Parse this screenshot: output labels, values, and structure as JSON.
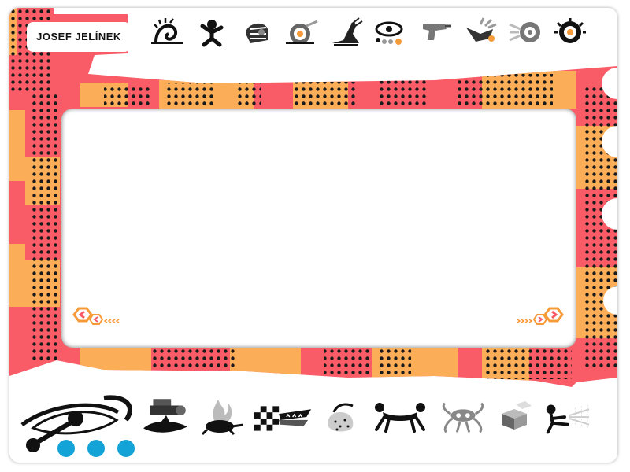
{
  "header": {
    "title": "JOSEF JELÍNEK"
  },
  "colors": {
    "coral": "#f95b67",
    "orange": "#fbae57",
    "dots": "#1a1a1a",
    "accent_blue": "#14a3d6",
    "arrow_orange": "#f79a3a"
  },
  "top_nav": {
    "items": [
      {
        "icon": "spiral-mollusk-icon"
      },
      {
        "icon": "dancing-figure-icon"
      },
      {
        "icon": "helmet-head-icon"
      },
      {
        "icon": "snail-shell-icon"
      },
      {
        "icon": "high-heel-shoe-icon"
      },
      {
        "icon": "eye-dots-icon"
      },
      {
        "icon": "pistol-icon"
      },
      {
        "icon": "bird-creature-icon"
      },
      {
        "icon": "hairdryer-icon"
      },
      {
        "icon": "gear-eye-icon"
      }
    ]
  },
  "bottom_nav": {
    "items": [
      {
        "icon": "camera-fish-icon"
      },
      {
        "icon": "fire-turtle-icon"
      },
      {
        "icon": "checkered-crocodile-icon"
      },
      {
        "icon": "hatching-egg-icon"
      },
      {
        "icon": "crawling-couple-icon"
      },
      {
        "icon": "spider-mask-icon"
      },
      {
        "icon": "blocks-icon"
      },
      {
        "icon": "spray-figure-icon"
      }
    ]
  },
  "viewer": {
    "prev_icon": "previous-arrow-icon",
    "next_icon": "next-arrow-icon"
  },
  "logo": {
    "icon": "eye-logo-icon"
  }
}
